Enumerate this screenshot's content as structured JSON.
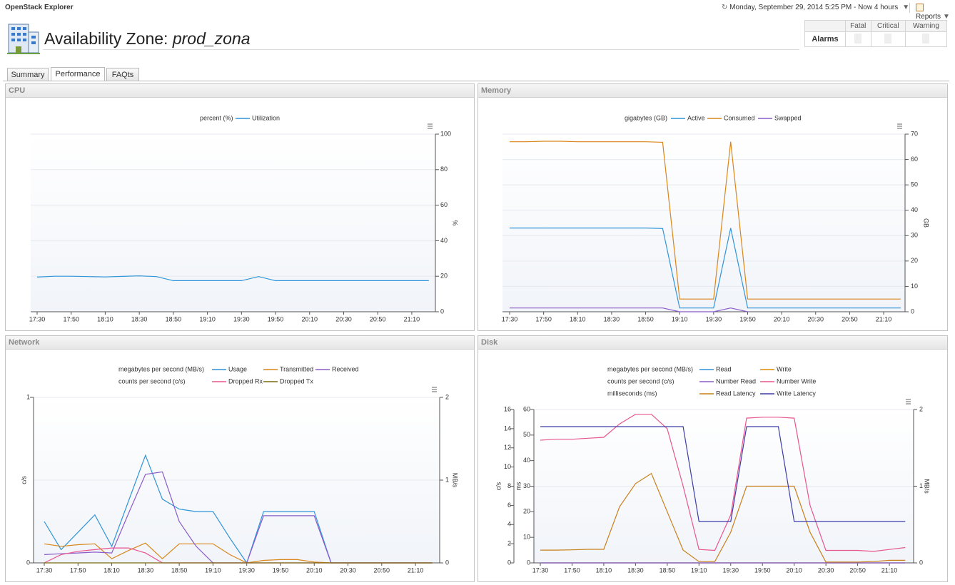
{
  "header": {
    "app": "OpenStack Explorer",
    "time_range": "Monday, September 29, 2014 5:25 PM - Now 4 hours",
    "reports": "Reports"
  },
  "title": {
    "label": "Availability Zone:",
    "name": "prod_zona"
  },
  "alarms": {
    "row": "Alarms",
    "columns": [
      "Fatal",
      "Critical",
      "Warning"
    ]
  },
  "tabs": [
    "Summary",
    "Performance",
    "FAQts"
  ],
  "chart_data": [
    {
      "type": "line",
      "title": "CPU",
      "grid": true,
      "categories": [
        "17:30",
        null,
        "17:50",
        null,
        "18:10",
        null,
        "18:30",
        null,
        "18:50",
        null,
        "19:10",
        null,
        "19:30",
        null,
        "19:50",
        null,
        "20:10",
        null,
        "20:30",
        null,
        "20:50",
        null,
        "21:10",
        null
      ],
      "ylegend": "percent (%)",
      "ytitle": "%",
      "ylim": [
        0,
        100
      ],
      "yticks": [
        0,
        20,
        40,
        60,
        80,
        100
      ],
      "series": [
        {
          "name": "Utilization",
          "color": "#2f94d8",
          "axis": "y",
          "values": [
            19.5,
            20,
            20,
            19.8,
            19.6,
            19.9,
            20.2,
            19.8,
            17.5,
            17.5,
            17.5,
            17.5,
            17.5,
            19.8,
            17.5,
            17.5,
            17.5,
            17.5,
            17.5,
            17.5,
            17.5,
            17.5,
            17.5,
            17.5
          ]
        }
      ]
    },
    {
      "type": "line",
      "title": "Memory",
      "grid": true,
      "categories": [
        "17:30",
        null,
        "17:50",
        null,
        "18:10",
        null,
        "18:30",
        null,
        "18:50",
        null,
        "19:10",
        null,
        "19:30",
        null,
        "19:50",
        null,
        "20:10",
        null,
        "20:30",
        null,
        "20:50",
        null,
        "21:10",
        null
      ],
      "ylegend": "gigabytes (GB)",
      "ytitle": "GB",
      "ylim": [
        0,
        70
      ],
      "yticks": [
        0,
        10,
        20,
        30,
        40,
        50,
        60,
        70
      ],
      "series": [
        {
          "name": "Active",
          "color": "#2f94d8",
          "axis": "y",
          "values": [
            33,
            33,
            33,
            33,
            33,
            33,
            33,
            33,
            33,
            32.8,
            1.5,
            1.5,
            1.5,
            33,
            1.5,
            1.5,
            1.5,
            1.5,
            1.5,
            1.5,
            1.5,
            1.5,
            1.5,
            1.5
          ]
        },
        {
          "name": "Consumed",
          "color": "#d9861a",
          "axis": "y",
          "values": [
            67,
            67,
            67.2,
            67.2,
            67,
            67,
            67,
            67,
            67,
            66.8,
            5,
            5,
            5,
            67,
            5,
            5,
            5,
            5,
            5,
            5,
            5,
            5,
            5,
            5
          ]
        },
        {
          "name": "Swapped",
          "color": "#8a5cc8",
          "axis": "y",
          "values": [
            1.5,
            1.5,
            1.5,
            1.5,
            1.5,
            1.5,
            1.5,
            1.5,
            1.5,
            1.5,
            0,
            0,
            0,
            1.5,
            0,
            null,
            null,
            null,
            null,
            null,
            null,
            null,
            null,
            null
          ]
        }
      ]
    },
    {
      "type": "line",
      "title": "Network",
      "grid": true,
      "categories": [
        "17:30",
        null,
        "17:50",
        null,
        "18:10",
        null,
        "18:30",
        null,
        "18:50",
        null,
        "19:10",
        null,
        "19:30",
        null,
        "19:50",
        null,
        "20:10",
        null,
        "20:30",
        null,
        "20:50",
        null,
        "21:10",
        null
      ],
      "ylegend": "megabytes per second (MB/s)",
      "ytitle": "MB/s",
      "ylim": [
        0,
        2
      ],
      "yticks": [
        0,
        1,
        2
      ],
      "y2legend": "counts per second (c/s)",
      "y2title": "c/s",
      "y2lim": [
        0,
        1
      ],
      "y2ticks": [
        0,
        1
      ],
      "series": [
        {
          "name": "Usage",
          "color": "#2f94d8",
          "axis": "y",
          "values": [
            0.5,
            0.16,
            0.37,
            0.58,
            0.2,
            0.75,
            1.3,
            0.77,
            0.65,
            0.62,
            0.62,
            0.3,
            0,
            0.62,
            0.62,
            0.62,
            0.62,
            0,
            0,
            0,
            0,
            0,
            0,
            0
          ]
        },
        {
          "name": "Transmitted",
          "color": "#d9861a",
          "axis": "y",
          "values": [
            0.23,
            0.2,
            0.22,
            0.23,
            0.05,
            0.15,
            0.24,
            0.05,
            0.23,
            0.23,
            0.23,
            0.1,
            0,
            0.03,
            0.04,
            0.04,
            0.01,
            0,
            0,
            0,
            0,
            0,
            0,
            0
          ]
        },
        {
          "name": "Received",
          "color": "#8a5cc8",
          "axis": "y",
          "values": [
            0.1,
            0.11,
            0.12,
            0.13,
            0.12,
            0.6,
            1.07,
            1.1,
            0.5,
            0.2,
            0,
            0,
            0,
            0.57,
            0.57,
            0.57,
            0.57,
            0,
            0,
            0,
            0,
            0,
            0,
            0
          ]
        },
        {
          "name": "Dropped Rx",
          "color": "#e8558f",
          "axis": "y2",
          "values": [
            0,
            0.05,
            0.07,
            0.08,
            0.09,
            0.09,
            0.06,
            0,
            0,
            0,
            0,
            0,
            0,
            0,
            0,
            0,
            0,
            0,
            0,
            0,
            0,
            0,
            0,
            0
          ]
        },
        {
          "name": "Dropped Tx",
          "color": "#7a6a10",
          "axis": "y2",
          "values": [
            0,
            0,
            0,
            0,
            0,
            0,
            0,
            0,
            0,
            0,
            0,
            0,
            0,
            0,
            0,
            0,
            0,
            0,
            0,
            0,
            0,
            0,
            0,
            0
          ]
        }
      ]
    },
    {
      "type": "line",
      "title": "Disk",
      "grid": true,
      "categories": [
        "17:30",
        null,
        "17:50",
        null,
        "18:10",
        null,
        "18:30",
        null,
        "18:50",
        null,
        "19:10",
        null,
        "19:30",
        null,
        "19:50",
        null,
        "20:10",
        null,
        "20:30",
        null,
        "20:50",
        null,
        "21:10",
        null
      ],
      "ylegend": "megabytes per second (MB/s)",
      "ytitle": "MB/s",
      "ylim": [
        0,
        2
      ],
      "yticks": [
        0,
        1,
        2
      ],
      "y2legend": "counts per second (c/s)",
      "y2title": "c/s",
      "y2lim": [
        0,
        16
      ],
      "y2ticks": [
        0,
        2,
        4,
        6,
        8,
        10,
        12,
        14,
        16
      ],
      "y3legend": "milliseconds (ms)",
      "y3title": "ms",
      "y3lim": [
        0,
        60
      ],
      "y3ticks": [
        0,
        10,
        20,
        30,
        40,
        50,
        60
      ],
      "series": [
        {
          "name": "Read",
          "color": "#2f94d8",
          "axis": "y",
          "values": [
            0,
            0,
            0,
            0,
            0,
            0,
            0,
            0,
            0,
            0,
            0,
            0,
            0,
            0,
            0,
            0,
            0,
            0,
            0,
            0,
            0,
            0,
            0,
            0
          ]
        },
        {
          "name": "Write",
          "color": "#e08c00",
          "axis": "y",
          "values": [
            0,
            0,
            0,
            0,
            0,
            0,
            0,
            0,
            0,
            0,
            0,
            0,
            0,
            0,
            0,
            0,
            0,
            0,
            0,
            0,
            0,
            0,
            0,
            0
          ]
        },
        {
          "name": "Number Read",
          "color": "#8a5cc8",
          "axis": "y2",
          "values": [
            0,
            0,
            0,
            0,
            0,
            0,
            0,
            0,
            0,
            0,
            0,
            0,
            0,
            0,
            0,
            0,
            0,
            0,
            0,
            0,
            0,
            0,
            0,
            0
          ]
        },
        {
          "name": "Number Write",
          "color": "#e8558f",
          "axis": "y2",
          "values": [
            12.8,
            12.9,
            12.9,
            13,
            13.1,
            14.5,
            15.5,
            15.5,
            14,
            8,
            1.4,
            1.3,
            5,
            15.1,
            15.2,
            15.2,
            15.1,
            6,
            1.3,
            1.3,
            1.3,
            1.2,
            1.4,
            1.6
          ]
        },
        {
          "name": "Read Latency",
          "color": "#c8801a",
          "axis": "y3",
          "values": [
            5,
            5,
            5.1,
            5.3,
            5.3,
            22,
            31,
            35,
            20,
            5,
            0.5,
            0.5,
            12,
            30,
            30,
            30,
            30,
            12,
            0.3,
            0.3,
            0.3,
            0.5,
            1,
            1
          ]
        },
        {
          "name": "Write Latency",
          "color": "#3d3daa",
          "axis": "y3",
          "values": [
            53.3,
            53.3,
            53.3,
            53.3,
            53.3,
            53.3,
            53.3,
            53.3,
            53.3,
            53.3,
            16.2,
            16.2,
            16.2,
            53.3,
            53.3,
            53.3,
            16.2,
            16.2,
            16.2,
            16.2,
            16.2,
            16.2,
            16.2,
            16.2
          ]
        }
      ]
    }
  ]
}
